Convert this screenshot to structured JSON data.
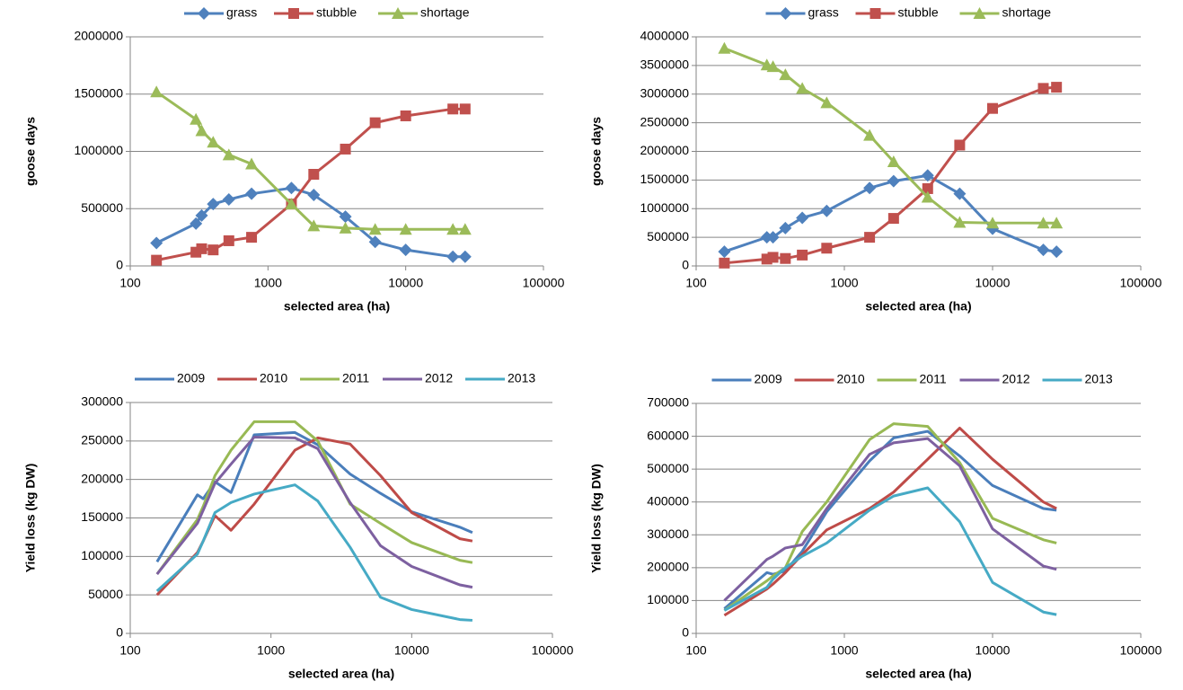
{
  "chart_data": [
    {
      "type": "line",
      "xscale": "log",
      "grid": true,
      "legend": "top",
      "xlabel": "selected area (ha)",
      "ylabel": "goose days",
      "x": [
        155,
        300,
        330,
        400,
        520,
        760,
        1480,
        2150,
        3650,
        6000,
        10000,
        22000,
        27000
      ],
      "xlim": [
        100,
        100000
      ],
      "xticks": [
        100,
        1000,
        10000,
        100000
      ],
      "ylim": [
        0,
        2000000
      ],
      "yticks": [
        0,
        500000,
        1000000,
        1500000,
        2000000
      ],
      "series": [
        {
          "name": "grass",
          "color": "#4f81bd",
          "marker": "diamond",
          "values": [
            200000,
            370000,
            440000,
            540000,
            580000,
            630000,
            680000,
            620000,
            430000,
            210000,
            140000,
            80000,
            80000
          ]
        },
        {
          "name": "stubble",
          "color": "#c0504d",
          "marker": "square",
          "values": [
            50000,
            120000,
            150000,
            140000,
            220000,
            250000,
            540000,
            800000,
            1020000,
            1250000,
            1310000,
            1370000,
            1370000
          ]
        },
        {
          "name": "shortage",
          "color": "#9bbb59",
          "marker": "triangle",
          "values": [
            1520000,
            1280000,
            1180000,
            1080000,
            970000,
            890000,
            540000,
            350000,
            330000,
            320000,
            320000,
            320000,
            320000
          ]
        }
      ]
    },
    {
      "type": "line",
      "xscale": "log",
      "grid": true,
      "legend": "top",
      "xlabel": "selected area (ha)",
      "ylabel": "goose days",
      "x": [
        155,
        300,
        330,
        400,
        520,
        760,
        1480,
        2150,
        3650,
        6000,
        10000,
        22000,
        27000
      ],
      "xlim": [
        100,
        100000
      ],
      "xticks": [
        100,
        1000,
        10000,
        100000
      ],
      "ylim": [
        0,
        4000000
      ],
      "yticks": [
        0,
        500000,
        1000000,
        1500000,
        2000000,
        2500000,
        3000000,
        3500000,
        4000000
      ],
      "series": [
        {
          "name": "grass",
          "color": "#4f81bd",
          "marker": "diamond",
          "values": [
            250000,
            500000,
            500000,
            660000,
            840000,
            960000,
            1360000,
            1480000,
            1580000,
            1260000,
            650000,
            280000,
            250000
          ]
        },
        {
          "name": "stubble",
          "color": "#c0504d",
          "marker": "square",
          "values": [
            50000,
            120000,
            150000,
            130000,
            190000,
            310000,
            500000,
            830000,
            1350000,
            2110000,
            2750000,
            3100000,
            3120000
          ]
        },
        {
          "name": "shortage",
          "color": "#9bbb59",
          "marker": "triangle",
          "values": [
            3800000,
            3510000,
            3480000,
            3340000,
            3100000,
            2850000,
            2280000,
            1820000,
            1200000,
            760000,
            750000,
            750000,
            750000
          ]
        }
      ]
    },
    {
      "type": "line",
      "xscale": "log",
      "grid": true,
      "legend": "top",
      "xlabel": "selected area (ha)",
      "ylabel": "Yield loss (kg DW)",
      "x": [
        155,
        300,
        330,
        400,
        520,
        760,
        1480,
        2150,
        3650,
        6000,
        10000,
        22000,
        27000
      ],
      "xlim": [
        100,
        100000
      ],
      "xticks": [
        100,
        1000,
        10000,
        100000
      ],
      "ylim": [
        0,
        300000
      ],
      "yticks": [
        0,
        50000,
        100000,
        150000,
        200000,
        250000,
        300000
      ],
      "series": [
        {
          "name": "2009",
          "color": "#4a7ebb",
          "values": [
            93000,
            180000,
            175000,
            197000,
            183000,
            258000,
            261000,
            245000,
            207000,
            182000,
            158000,
            138000,
            131000
          ]
        },
        {
          "name": "2010",
          "color": "#be4b48",
          "values": [
            50000,
            105000,
            120000,
            153000,
            134000,
            168000,
            238000,
            254000,
            246000,
            205000,
            157000,
            123000,
            120000
          ]
        },
        {
          "name": "2011",
          "color": "#98b954",
          "values": [
            77000,
            148000,
            165000,
            205000,
            238000,
            275000,
            275000,
            250000,
            168000,
            143000,
            118000,
            95000,
            92000
          ]
        },
        {
          "name": "2012",
          "color": "#7d60a0",
          "values": [
            77000,
            143000,
            160000,
            195000,
            220000,
            255000,
            254000,
            240000,
            170000,
            114000,
            87000,
            63000,
            60000
          ]
        },
        {
          "name": "2013",
          "color": "#46aac5",
          "values": [
            55000,
            103000,
            120000,
            157000,
            170000,
            181000,
            193000,
            172000,
            112000,
            47000,
            31000,
            18000,
            17000
          ]
        }
      ]
    },
    {
      "type": "line",
      "xscale": "log",
      "grid": true,
      "legend": "top",
      "xlabel": "selected area (ha)",
      "ylabel": "Yield loss (kg DW)",
      "x": [
        155,
        300,
        330,
        400,
        520,
        760,
        1480,
        2150,
        3650,
        6000,
        10000,
        22000,
        27000
      ],
      "xlim": [
        100,
        100000
      ],
      "xticks": [
        100,
        1000,
        10000,
        100000
      ],
      "ylim": [
        0,
        700000
      ],
      "yticks": [
        0,
        100000,
        200000,
        300000,
        400000,
        500000,
        600000,
        700000
      ],
      "series": [
        {
          "name": "2009",
          "color": "#4a7ebb",
          "values": [
            75000,
            185000,
            180000,
            190000,
            250000,
            370000,
            525000,
            595000,
            615000,
            540000,
            450000,
            380000,
            375000
          ]
        },
        {
          "name": "2010",
          "color": "#be4b48",
          "values": [
            55000,
            135000,
            150000,
            185000,
            240000,
            315000,
            380000,
            430000,
            530000,
            625000,
            530000,
            400000,
            380000
          ]
        },
        {
          "name": "2011",
          "color": "#98b954",
          "values": [
            70000,
            160000,
            175000,
            200000,
            310000,
            400000,
            590000,
            638000,
            630000,
            520000,
            350000,
            285000,
            275000
          ]
        },
        {
          "name": "2012",
          "color": "#7d60a0",
          "values": [
            100000,
            225000,
            235000,
            260000,
            270000,
            380000,
            545000,
            580000,
            593000,
            510000,
            318000,
            205000,
            195000
          ]
        },
        {
          "name": "2013",
          "color": "#46aac5",
          "values": [
            70000,
            140000,
            165000,
            200000,
            235000,
            275000,
            375000,
            418000,
            443000,
            340000,
            155000,
            65000,
            57000
          ]
        }
      ]
    }
  ]
}
